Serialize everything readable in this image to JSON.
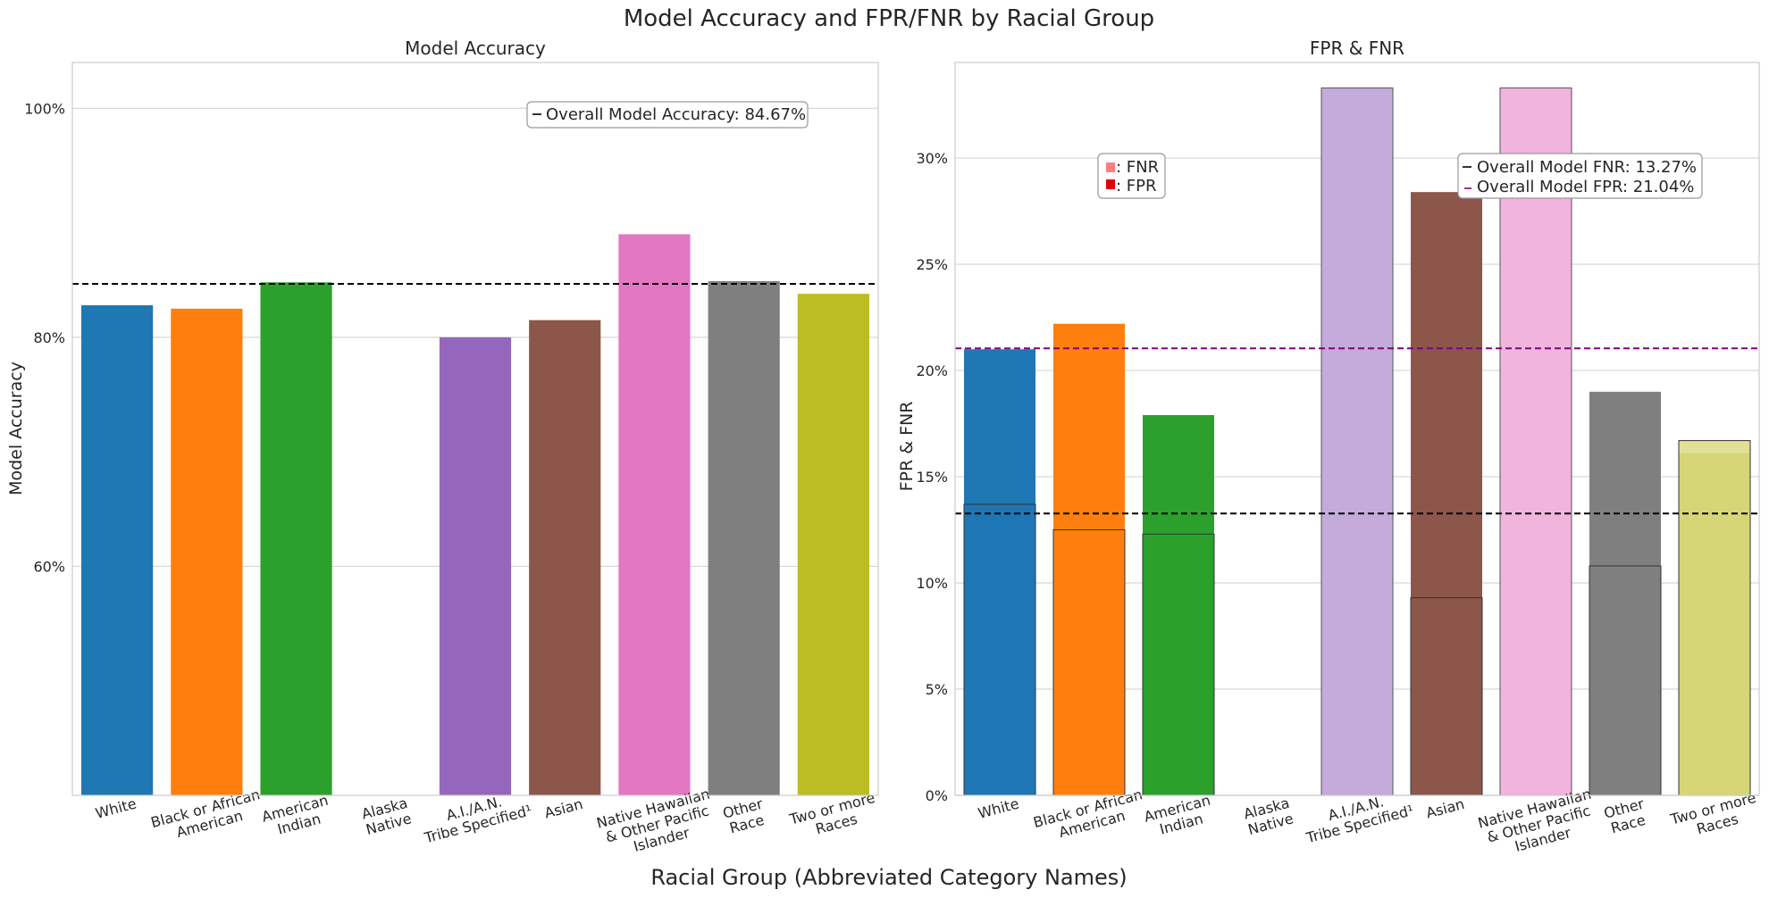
{
  "figure": {
    "title": "Model Accuracy and FPR/FNR by Racial Group",
    "xlabel": "Racial Group (Abbreviated Category Names)"
  },
  "categories": [
    [
      "White"
    ],
    [
      "Black or African",
      "American"
    ],
    [
      "American",
      "Indian"
    ],
    [
      "Alaska",
      "Native"
    ],
    [
      "A.I./A.N.",
      "Tribe Specified¹"
    ],
    [
      "Asian"
    ],
    [
      "Native Hawaiian",
      "& Other Pacific",
      "Islander"
    ],
    [
      "Other",
      "Race"
    ],
    [
      "Two or more",
      "Races"
    ]
  ],
  "colors": [
    "#1f77b4",
    "#ff7f0e",
    "#2ca02c",
    "#d62728",
    "#9467bd",
    "#8c564b",
    "#e377c2",
    "#7f7f7f",
    "#bcbd22"
  ],
  "chart_data": [
    {
      "type": "bar",
      "title": "Model Accuracy",
      "ylabel": "Model Accuracy",
      "ylim": [
        40,
        104
      ],
      "yticks": [
        60,
        80,
        100
      ],
      "ytick_labels": [
        "60%",
        "80%",
        "100%"
      ],
      "grid": true,
      "values": [
        82.8,
        82.5,
        84.8,
        null,
        80.0,
        81.5,
        89.0,
        84.9,
        83.8
      ],
      "reference_line": {
        "value": 84.67,
        "color": "#000000",
        "label": "Overall Model Accuracy:  84.67%"
      }
    },
    {
      "type": "bar",
      "title": "FPR & FNR",
      "ylabel": "FPR & FNR",
      "ylim": [
        0,
        34.5
      ],
      "yticks": [
        0,
        5,
        10,
        15,
        20,
        25,
        30
      ],
      "ytick_labels": [
        "0%",
        "5%",
        "10%",
        "15%",
        "20%",
        "25%",
        "30%"
      ],
      "grid": true,
      "legend": {
        "placement": "upper-left",
        "entries": [
          ": FNR",
          ": FPR"
        ],
        "swatches": [
          "#ff7f7f",
          "#e00000"
        ]
      },
      "series": [
        {
          "name": "FPR",
          "values": [
            21.0,
            22.2,
            17.9,
            null,
            33.3,
            28.4,
            33.3,
            19.0,
            16.1
          ]
        },
        {
          "name": "FNR",
          "values": [
            13.7,
            12.5,
            12.3,
            null,
            null,
            9.3,
            null,
            10.8,
            16.7
          ]
        }
      ],
      "reference_lines": [
        {
          "value": 13.27,
          "color": "#000000",
          "label": "Overall Model FNR:  13.27%"
        },
        {
          "value": 21.04,
          "color": "#800080",
          "label": "Overall Model FPR:  21.04%"
        }
      ]
    }
  ]
}
